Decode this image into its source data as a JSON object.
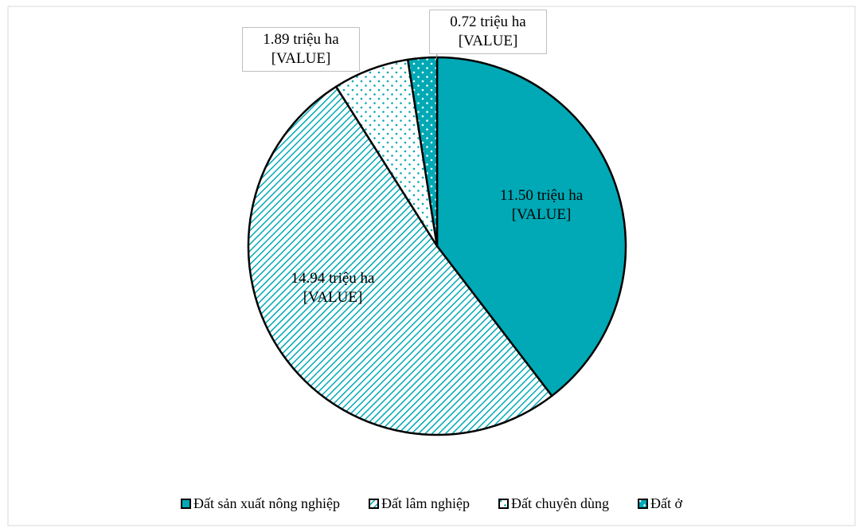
{
  "chart_data": {
    "type": "pie",
    "categories": [
      "Đất sản xuất nông nghiệp",
      "Đất lâm nghiệp",
      "Đất chuyên dùng",
      "Đất ở"
    ],
    "values": [
      11.5,
      14.94,
      1.89,
      0.72
    ],
    "value_labels": [
      "11.50 triệu ha [VALUE]",
      "14.94 triệu ha [VALUE]",
      "1.89 triệu ha [VALUE]",
      "0.72 triệu ha [VALUE]"
    ],
    "colors": [
      "#00a9b5",
      "#00a9b5",
      "#00a9b5",
      "#00a9b5"
    ],
    "patterns": [
      "solid",
      "diagonal",
      "dots",
      "dots-inverse"
    ],
    "legend": "bottom"
  }
}
